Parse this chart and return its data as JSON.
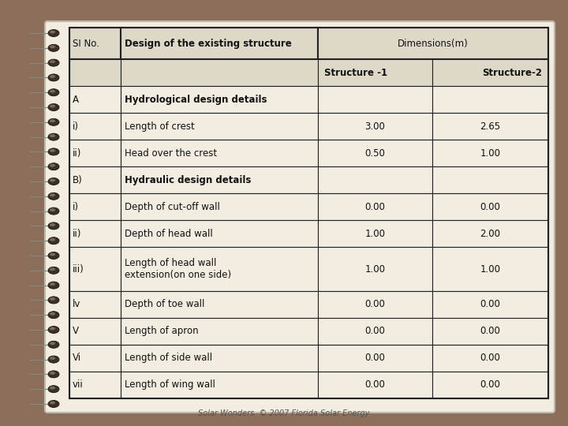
{
  "background_color": "#8B6F5A",
  "paper_color": "#F2EDE0",
  "table_border_color": "#222222",
  "header_bg": "#DDD8C8",
  "paper_edge_color": "#C0B8A8",
  "rows": [
    [
      "A",
      "Hydrological design details",
      "",
      "",
      true
    ],
    [
      "i)",
      "Length of crest",
      "3.00",
      "2.65",
      false
    ],
    [
      "ii)",
      "Head over the crest",
      "0.50",
      "1.00",
      false
    ],
    [
      "B)",
      "Hydraulic design details",
      "",
      "",
      true
    ],
    [
      "i)",
      "Depth of cut-off wall",
      "0.00",
      "0.00",
      false
    ],
    [
      "ii)",
      "Depth of head wall",
      "1.00",
      "2.00",
      false
    ],
    [
      "iii)",
      "Length of head wall\nextension(on one side)",
      "1.00",
      "1.00",
      false
    ],
    [
      "lv",
      "Depth of toe wall",
      "0.00",
      "0.00",
      false
    ],
    [
      "V",
      "Length of apron",
      "0.00",
      "0.00",
      false
    ],
    [
      "Vi",
      "Length of side wall",
      "0.00",
      "0.00",
      false
    ],
    [
      "vii",
      "Length of wing wall",
      "0.00",
      "0.00",
      false
    ]
  ],
  "footer_text": "Solar Wonders  © 2007 Florida Solar Energy",
  "font_size": 8.5,
  "header_font_size": 8.5
}
